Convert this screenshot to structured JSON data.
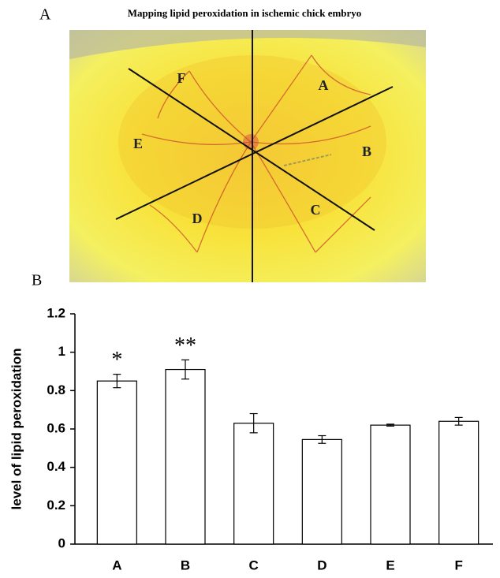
{
  "photo_panel": {
    "panel_label": "A",
    "title": "Mapping lipid peroxidation in ischemic chick embryo",
    "regions": [
      "A",
      "B",
      "C",
      "D",
      "E",
      "F"
    ]
  },
  "chart_data": {
    "type": "bar",
    "panel_label": "B",
    "ylabel": "level of lipid peroxidation",
    "categories": [
      "A",
      "B",
      "C",
      "D",
      "E",
      "F"
    ],
    "values": [
      0.85,
      0.91,
      0.63,
      0.545,
      0.62,
      0.64
    ],
    "errors": [
      0.035,
      0.05,
      0.05,
      0.02,
      0.005,
      0.02
    ],
    "value_annotations": [
      "*",
      "**",
      null,
      null,
      null,
      null
    ],
    "color": "#ffffff",
    "ylim": [
      0,
      1.2
    ],
    "yticks": [
      0,
      0.2,
      0.4,
      0.6,
      0.8,
      1,
      1.2
    ],
    "grid": false
  }
}
